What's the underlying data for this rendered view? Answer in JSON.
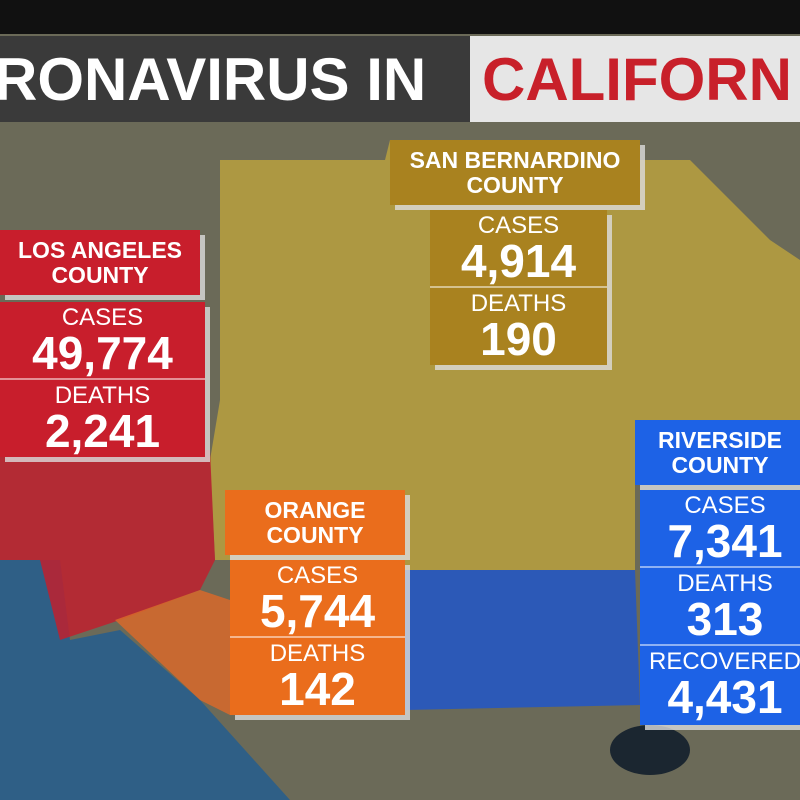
{
  "header": {
    "title_left": "RONAVIRUS IN",
    "title_right": "CALIFORN"
  },
  "counties": [
    {
      "name": "LOS ANGELES COUNTY",
      "stats": [
        {
          "label": "CASES",
          "value": "49,774"
        },
        {
          "label": "DEATHS",
          "value": "2,241"
        }
      ]
    },
    {
      "name": "SAN BERNARDINO COUNTY",
      "stats": [
        {
          "label": "CASES",
          "value": "4,914"
        },
        {
          "label": "DEATHS",
          "value": "190"
        }
      ]
    },
    {
      "name": "ORANGE COUNTY",
      "stats": [
        {
          "label": "CASES",
          "value": "5,744"
        },
        {
          "label": "DEATHS",
          "value": "142"
        }
      ]
    },
    {
      "name": "RIVERSIDE COUNTY",
      "stats": [
        {
          "label": "CASES",
          "value": "7,341"
        },
        {
          "label": "DEATHS",
          "value": "313"
        },
        {
          "label": "RECOVERED",
          "value": "4,431"
        }
      ]
    }
  ]
}
